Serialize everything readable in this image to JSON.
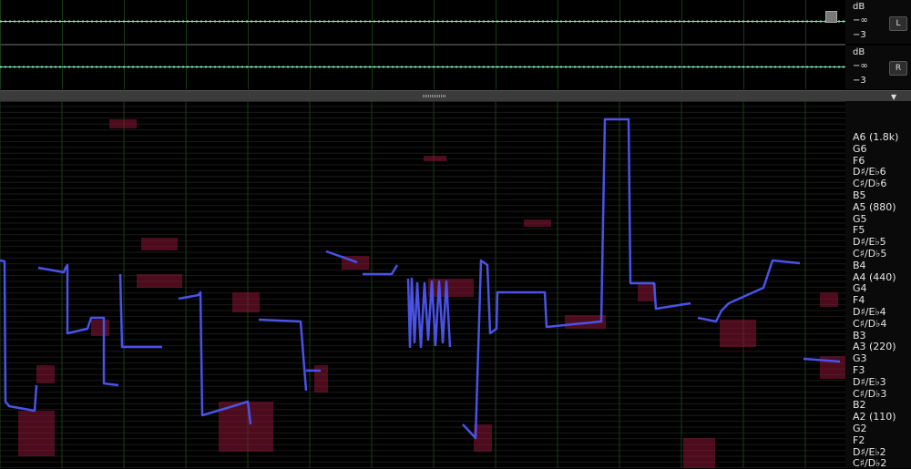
{
  "colors": {
    "waveform": "#7fe0b0",
    "grid": "#1f5a1f",
    "pitch_line": "#4a52e8",
    "spectral": "#8a1535",
    "background": "#000000"
  },
  "waveform_panel": {
    "channels": [
      {
        "button": "L",
        "unit": "dB",
        "ticks": [
          "−∞",
          "−3"
        ]
      },
      {
        "button": "R",
        "unit": "dB",
        "ticks": [
          "−∞",
          "−3"
        ]
      }
    ]
  },
  "pitch_panel": {
    "note_labels": [
      "A6 (1.8k)",
      "G6",
      "F6",
      "D♯/E♭6",
      "C♯/D♭6",
      "B5",
      "A5 (880)",
      "G5",
      "F5",
      "D♯/E♭5",
      "C♯/D♭5",
      "B4",
      "A4 (440)",
      "G4",
      "F4",
      "D♯/E♭4",
      "C♯/D♭4",
      "B3",
      "A3 (220)",
      "G3",
      "F3",
      "D♯/E♭3",
      "C♯/D♭3",
      "B2",
      "A2 (110)",
      "G2",
      "F2",
      "D♯/E♭2",
      "C♯/D♭2"
    ]
  }
}
